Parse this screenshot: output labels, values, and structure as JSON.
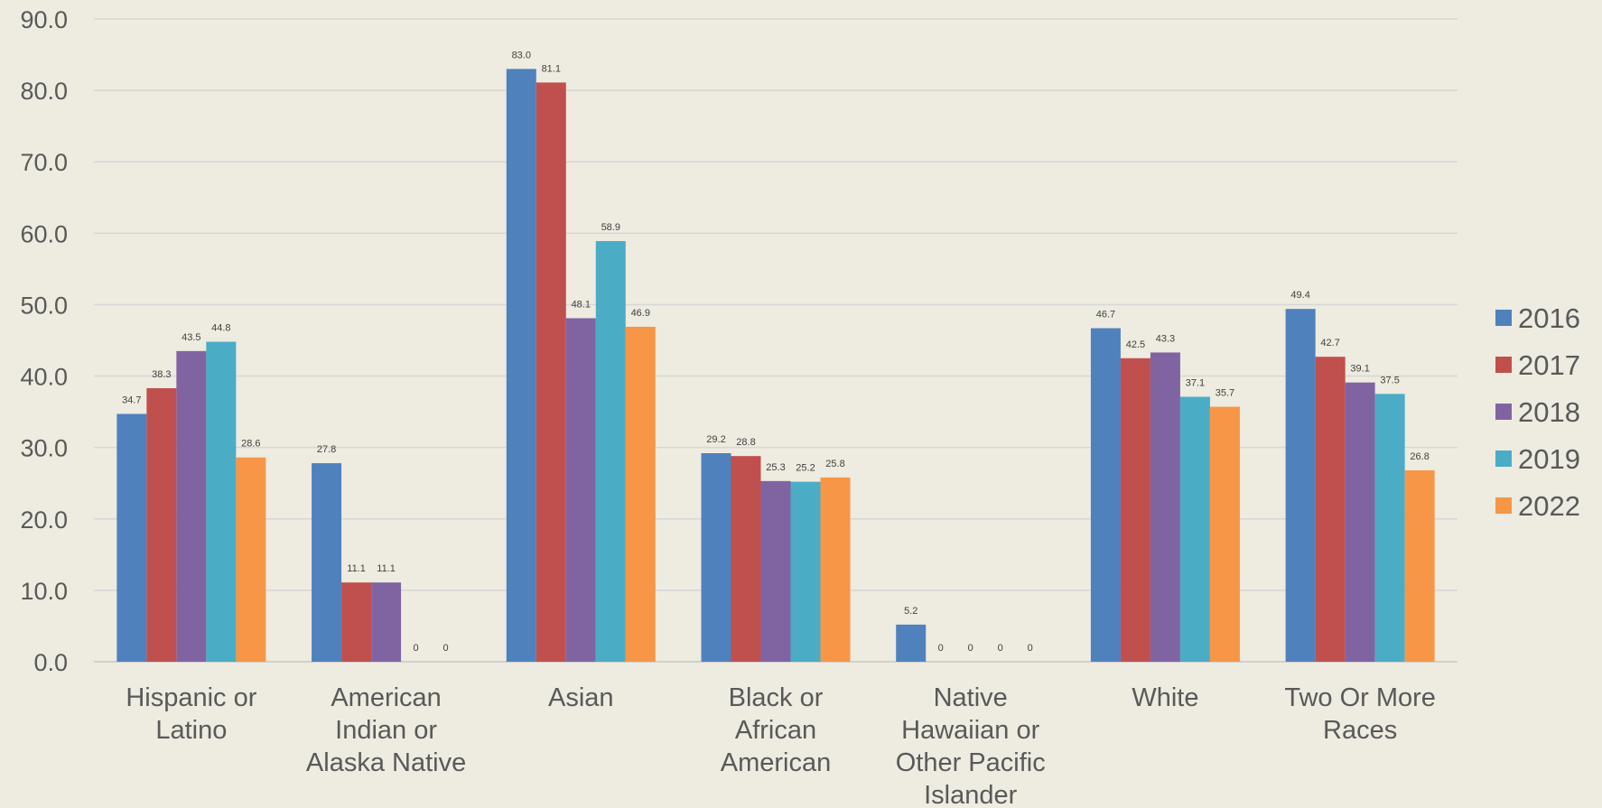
{
  "chart_data": {
    "type": "bar",
    "title": "",
    "xlabel": "",
    "ylabel": "",
    "ylim": [
      0,
      90
    ],
    "ytick_step": 10,
    "ytick_labels": [
      "0.0",
      "10.0",
      "20.0",
      "30.0",
      "40.0",
      "50.0",
      "60.0",
      "70.0",
      "80.0",
      "90.0"
    ],
    "grid": true,
    "legend_position": "right",
    "categories": [
      [
        "Hispanic or",
        "Latino"
      ],
      [
        "American",
        "Indian or",
        "Alaska Native"
      ],
      [
        "Asian"
      ],
      [
        "Black or",
        "African",
        "American"
      ],
      [
        "Native",
        "Hawaiian or",
        "Other Pacific",
        "Islander"
      ],
      [
        "White"
      ],
      [
        "Two Or More",
        "Races"
      ]
    ],
    "series": [
      {
        "name": "2016",
        "color": "#4f81bd",
        "values": [
          34.7,
          27.8,
          83.0,
          29.2,
          5.2,
          46.7,
          49.4
        ],
        "labels": [
          "34.7",
          "27.8",
          "83.0",
          "29.2",
          "5.2",
          "46.7",
          "49.4"
        ]
      },
      {
        "name": "2017",
        "color": "#c0504d",
        "values": [
          38.3,
          11.1,
          81.1,
          28.8,
          0,
          42.5,
          42.7
        ],
        "labels": [
          "38.3",
          "11.1",
          "81.1",
          "28.8",
          "0",
          "42.5",
          "42.7"
        ]
      },
      {
        "name": "2018",
        "color": "#8064a2",
        "values": [
          43.5,
          11.1,
          48.1,
          25.3,
          0,
          43.3,
          39.1
        ],
        "labels": [
          "43.5",
          "11.1",
          "48.1",
          "25.3",
          "0",
          "43.3",
          "39.1"
        ]
      },
      {
        "name": "2019",
        "color": "#4bacc6",
        "values": [
          44.8,
          0,
          58.9,
          25.2,
          0,
          37.1,
          37.5
        ],
        "labels": [
          "44.8",
          "0",
          "58.9",
          "25.2",
          "0",
          "37.1",
          "37.5"
        ]
      },
      {
        "name": "2022",
        "color": "#f79646",
        "values": [
          28.6,
          0,
          46.9,
          25.8,
          0,
          35.7,
          26.8
        ],
        "labels": [
          "28.6",
          "0",
          "46.9",
          "25.8",
          "0",
          "35.7",
          "26.8"
        ]
      }
    ]
  }
}
